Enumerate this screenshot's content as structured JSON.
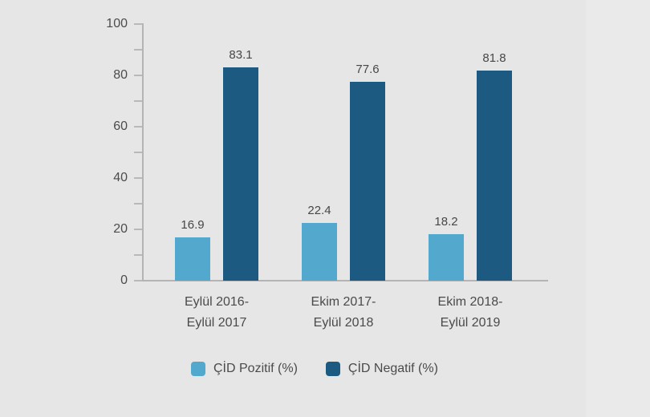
{
  "page": {
    "background": "#e6e6e6",
    "right_panel_background": "#eaeaea"
  },
  "chart_data": {
    "type": "bar",
    "title": "",
    "categories": [
      "Eylül 2016-\nEylül 2017",
      "Ekim 2017-\nEylül 2018",
      "Ekim 2018-\nEylül 2019"
    ],
    "series": [
      {
        "name": "ÇİD Pozitif (%)",
        "color": "#53a9cd",
        "values": [
          16.9,
          22.4,
          18.2
        ]
      },
      {
        "name": "ÇİD Negatif (%)",
        "color": "#1d5a81",
        "values": [
          83.1,
          77.6,
          81.8
        ]
      }
    ],
    "ylim": [
      0,
      100
    ],
    "yticks": [
      0,
      20,
      40,
      60,
      80,
      100
    ],
    "minor_tick_step": 10,
    "grid": false,
    "value_labels": true,
    "legend_position": "bottom",
    "axis_color": "#b4b4b4",
    "text_color": "#4a4a4a",
    "xlabel": "",
    "ylabel": ""
  }
}
